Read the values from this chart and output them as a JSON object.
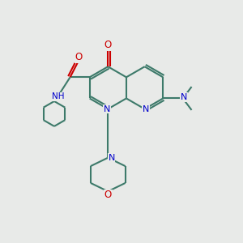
{
  "background_color": "#e8eae8",
  "bond_color": "#3d7a6a",
  "nitrogen_color": "#0000cc",
  "oxygen_color": "#cc0000",
  "line_width": 1.5,
  "fig_size": [
    3.0,
    3.0
  ],
  "dpi": 100,
  "xlim": [
    0,
    10
  ],
  "ylim": [
    0,
    10
  ]
}
